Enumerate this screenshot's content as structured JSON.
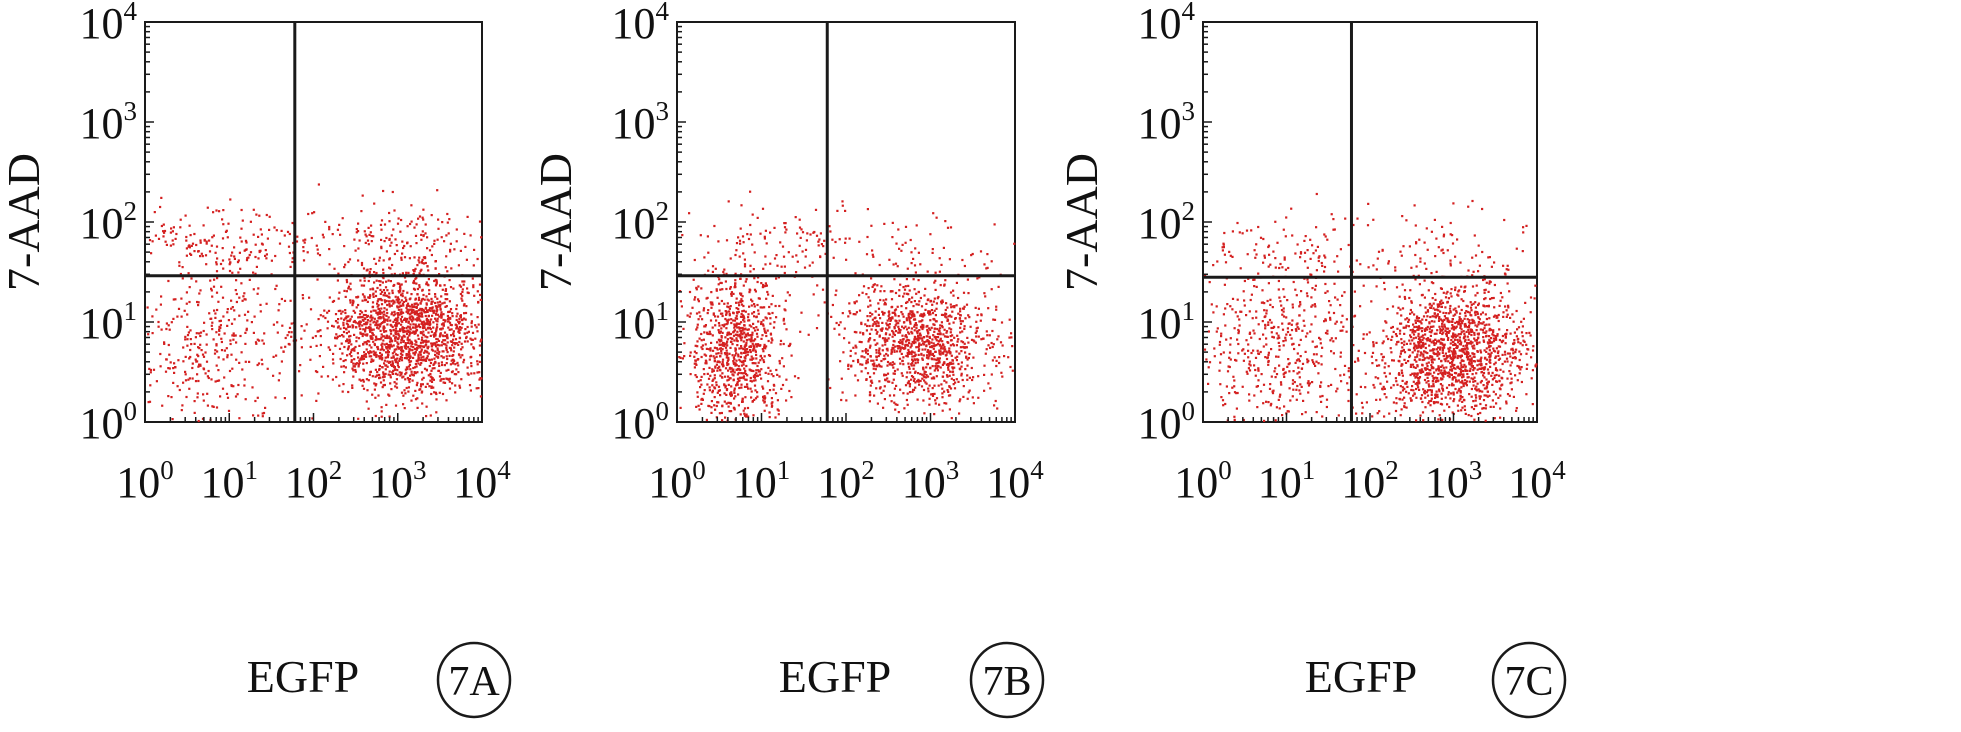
{
  "figure": {
    "panels": [
      {
        "id": "A",
        "label": "7A"
      },
      {
        "id": "B",
        "label": "7B"
      },
      {
        "id": "C",
        "label": "7C"
      }
    ]
  },
  "colors": {
    "dots": "#d42020",
    "axes": "#1a1a1a",
    "background": "#ffffff"
  },
  "chart_data": [
    {
      "type": "scatter",
      "panel_label": "7A",
      "xlabel": "EGFP",
      "ylabel": "7-AAD",
      "x_scale": "log",
      "y_scale": "log",
      "xlim": [
        1,
        10000
      ],
      "ylim": [
        1,
        10000
      ],
      "x_ticks": [
        {
          "base": "10",
          "exp": "0"
        },
        {
          "base": "10",
          "exp": "1"
        },
        {
          "base": "10",
          "exp": "2"
        },
        {
          "base": "10",
          "exp": "3"
        },
        {
          "base": "10",
          "exp": "4"
        }
      ],
      "y_ticks": [
        {
          "base": "10",
          "exp": "0"
        },
        {
          "base": "10",
          "exp": "1"
        },
        {
          "base": "10",
          "exp": "2"
        },
        {
          "base": "10",
          "exp": "3"
        },
        {
          "base": "10",
          "exp": "4"
        }
      ],
      "quadrant_gates": {
        "x": 60,
        "y": 29
      },
      "populations": [
        {
          "center": [
            1300,
            8
          ],
          "spread": [
            0.45,
            0.33
          ],
          "count": 1700
        },
        {
          "center": [
            6,
            6
          ],
          "spread": [
            0.55,
            0.45
          ],
          "count": 420
        },
        {
          "center": [
            8,
            60
          ],
          "spread": [
            0.7,
            0.2
          ],
          "count": 200
        },
        {
          "center": [
            1200,
            70
          ],
          "spread": [
            0.6,
            0.2
          ],
          "count": 150
        }
      ]
    },
    {
      "type": "scatter",
      "panel_label": "7B",
      "xlabel": "EGFP",
      "ylabel": "7-AAD",
      "x_scale": "log",
      "y_scale": "log",
      "xlim": [
        1,
        10000
      ],
      "ylim": [
        1,
        10000
      ],
      "x_ticks": [
        {
          "base": "10",
          "exp": "0"
        },
        {
          "base": "10",
          "exp": "1"
        },
        {
          "base": "10",
          "exp": "2"
        },
        {
          "base": "10",
          "exp": "3"
        },
        {
          "base": "10",
          "exp": "4"
        }
      ],
      "y_ticks": [
        {
          "base": "10",
          "exp": "0"
        },
        {
          "base": "10",
          "exp": "1"
        },
        {
          "base": "10",
          "exp": "2"
        },
        {
          "base": "10",
          "exp": "3"
        },
        {
          "base": "10",
          "exp": "4"
        }
      ],
      "quadrant_gates": {
        "x": 60,
        "y": 29
      },
      "populations": [
        {
          "center": [
            5,
            5
          ],
          "spread": [
            0.28,
            0.4
          ],
          "count": 900
        },
        {
          "center": [
            700,
            6
          ],
          "spread": [
            0.45,
            0.3
          ],
          "count": 1100
        },
        {
          "center": [
            20,
            60
          ],
          "spread": [
            0.6,
            0.2
          ],
          "count": 120
        },
        {
          "center": [
            1000,
            50
          ],
          "spread": [
            0.6,
            0.2
          ],
          "count": 60
        }
      ]
    },
    {
      "type": "scatter",
      "panel_label": "7C",
      "xlabel": "EGFP",
      "ylabel": "7-AAD",
      "x_scale": "log",
      "y_scale": "log",
      "xlim": [
        1,
        10000
      ],
      "ylim": [
        1,
        10000
      ],
      "x_ticks": [
        {
          "base": "10",
          "exp": "0"
        },
        {
          "base": "10",
          "exp": "1"
        },
        {
          "base": "10",
          "exp": "2"
        },
        {
          "base": "10",
          "exp": "3"
        },
        {
          "base": "10",
          "exp": "4"
        }
      ],
      "y_ticks": [
        {
          "base": "10",
          "exp": "0"
        },
        {
          "base": "10",
          "exp": "1"
        },
        {
          "base": "10",
          "exp": "2"
        },
        {
          "base": "10",
          "exp": "3"
        },
        {
          "base": "10",
          "exp": "4"
        }
      ],
      "quadrant_gates": {
        "x": 60,
        "y": 28
      },
      "populations": [
        {
          "center": [
            1000,
            5
          ],
          "spread": [
            0.45,
            0.33
          ],
          "count": 1500
        },
        {
          "center": [
            8,
            5
          ],
          "spread": [
            0.55,
            0.4
          ],
          "count": 500
        },
        {
          "center": [
            12,
            50
          ],
          "spread": [
            0.6,
            0.2
          ],
          "count": 120
        },
        {
          "center": [
            900,
            60
          ],
          "spread": [
            0.6,
            0.2
          ],
          "count": 80
        }
      ]
    }
  ]
}
